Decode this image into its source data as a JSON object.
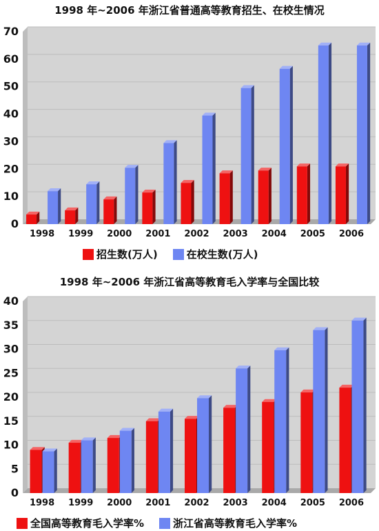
{
  "chart_data": [
    {
      "type": "bar",
      "title": "1998 年~2006 年浙江省普通高等教育招生、在校生情况",
      "categories": [
        "1998",
        "1999",
        "2000",
        "2001",
        "2002",
        "2003",
        "2004",
        "2005",
        "2006"
      ],
      "series": [
        {
          "name": "招生数(万人)",
          "values": [
            3.5,
            5,
            9,
            11.5,
            15,
            18.5,
            19.5,
            21,
            21
          ]
        },
        {
          "name": "在校生数(万人)",
          "values": [
            12,
            14.5,
            20.5,
            29.5,
            39.5,
            49.5,
            56.5,
            65,
            65
          ]
        }
      ],
      "ylim": [
        0,
        70
      ],
      "yticks": [
        0,
        10,
        20,
        30,
        40,
        50,
        60,
        70
      ],
      "xlabel": "",
      "ylabel": "",
      "colors": [
        "#ee1111",
        "#6e86f2"
      ],
      "legend": "bottom-center"
    },
    {
      "type": "bar",
      "title": "1998 年~2006 年浙江省高等教育毛入学率与全国比较",
      "categories": [
        "1998",
        "1999",
        "2000",
        "2001",
        "2002",
        "2003",
        "2004",
        "2005",
        "2006"
      ],
      "series": [
        {
          "name": "全国高等教育毛入学率%",
          "values": [
            9,
            10.5,
            11.5,
            15,
            15.5,
            17.8,
            19,
            21,
            22
          ]
        },
        {
          "name": "浙江省高等教育毛入学率%",
          "values": [
            8.7,
            11,
            13,
            17,
            19.8,
            26,
            29.8,
            34,
            36
          ]
        }
      ],
      "ylim": [
        0,
        40
      ],
      "yticks": [
        0,
        5,
        10,
        15,
        20,
        25,
        30,
        35,
        40
      ],
      "xlabel": "",
      "ylabel": "",
      "colors": [
        "#ee1111",
        "#6e86f2"
      ],
      "legend": "bottom-left"
    }
  ]
}
